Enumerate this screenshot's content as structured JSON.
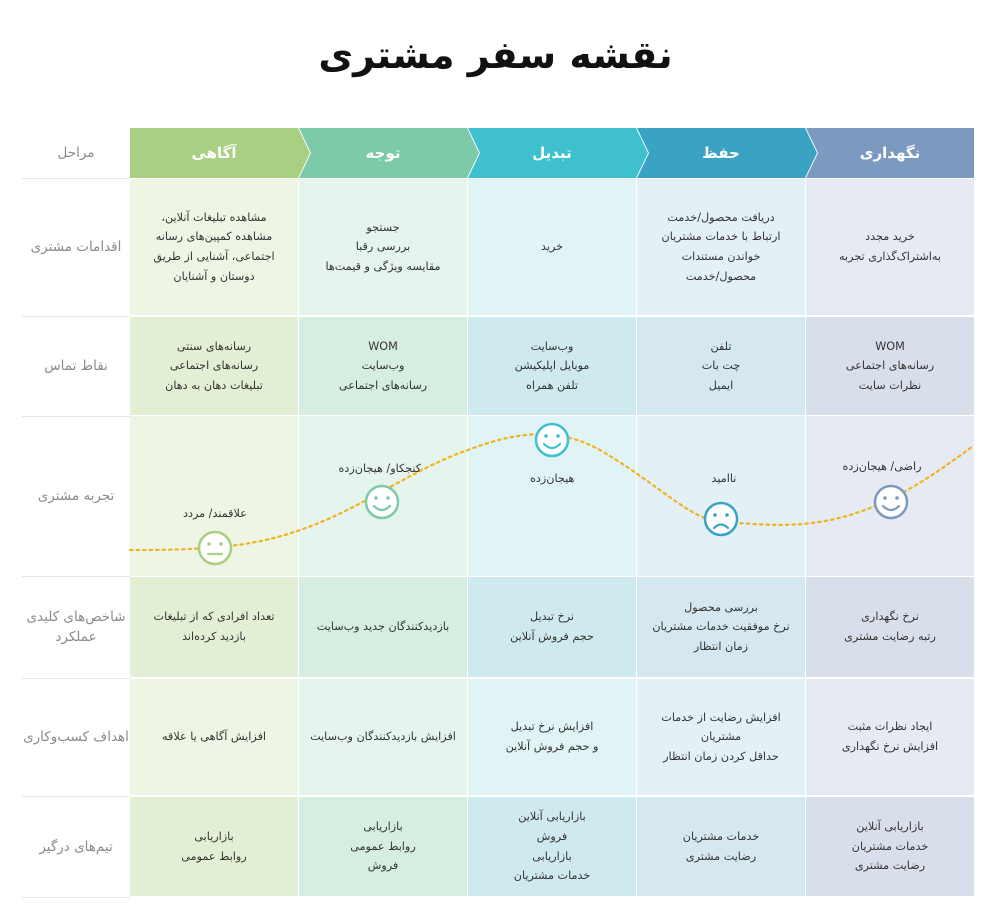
{
  "title": "نقشه سفر مشتری",
  "stages_label": "مراحل",
  "rows": [
    {
      "label": "اقدامات مشتری"
    },
    {
      "label": "نقاط تماس"
    },
    {
      "label": "تجربه مشتری"
    },
    {
      "label": "شاخص‌های کلیدی عملکرد"
    },
    {
      "label": "اهداف کسب‌وکاری"
    },
    {
      "label": "تیم‌های درگیر"
    }
  ],
  "phases": [
    {
      "name": "آگاهی",
      "color": "#a9cf83",
      "tint": "#eef5e4",
      "tint2": "#e3efd5",
      "actions": "مشاهده تبلیغات آنلاین،\nمشاهده کمپین‌های رسانه\nاجتماعی، آشنایی از طریق\nدوستان و آشنایان",
      "touchpoints": "رسانه‌های سنتی\nرسانه‌های اجتماعی\nتبلیغات دهان به دهان",
      "experience": "علاقمند/ مردد",
      "face": "neutral",
      "kpi": "تعداد افرادی که از تبلیغات\nبازدید کرده‌اند",
      "goals": "افزایش آگاهی یا علاقه",
      "teams": "بازاریابی\nروابط عمومی"
    },
    {
      "name": "توجه",
      "color": "#7ccaa8",
      "tint": "#e5f4ec",
      "tint2": "#d6eee2",
      "actions": "جستجو\nبررسی رقبا\nمقایسه ویژگی و قیمت‌ها",
      "touchpoints": "WOM\nوب‌سایت\nرسانه‌های اجتماعی",
      "experience": "کنجکاو/ هیجان‌زده",
      "face": "happy",
      "kpi": "بازدیدکنندگان جدید وب‌سایت",
      "goals": "افزایش بازدیدکنندگان وب‌سایت",
      "teams": "بازاریابی\nروابط عمومی\nفروش"
    },
    {
      "name": "تبدیل",
      "color": "#3fc0cf",
      "tint": "#e0f3f5",
      "tint2": "#cfeaee",
      "actions": "خرید",
      "touchpoints": "وب‌سایت\nموبایل اپلیکیشن\nتلفن همراه",
      "experience": "هیجان‌زده",
      "face": "happy",
      "kpi": "نرخ تبدیل\nحجم فروش آنلاین",
      "goals": "افزایش نرخ تبدیل\nو حجم فروش آنلاین",
      "teams": "بازاریابی آنلاین\nفروش\nبازاریابی\nخدمات مشتریان"
    },
    {
      "name": "حفظ",
      "color": "#3aa3c4",
      "tint": "#e3f0f6",
      "tint2": "#d5e8f0",
      "actions": "دریافت محصول/خدمت\nارتباط با خدمات مشتریان\nخواندن مستندات\nمحصول/خدمت",
      "touchpoints": "تلفن\nچت بات\nایمیل",
      "experience": "ناامید",
      "face": "sad",
      "kpi": "بررسی محصول\nنرخ موفقیت خدمات مشتریان\nزمان انتظار",
      "goals": "افزایش رضایت از خدمات\nمشتریان\nحداقل کردن زمان انتظار",
      "teams": "خدمات مشتریان\nرضایت مشتری"
    },
    {
      "name": "نگهداری",
      "color": "#7c9ac0",
      "tint": "#e6eaf2",
      "tint2": "#d9dfea",
      "actions": "خرید مجدد\nبه‌اشتراک‌گذاری تجربه",
      "touchpoints": "WOM\nرسانه‌های اجتماعی\nنظرات سایت",
      "experience": "راضی/ هیجان‌زده",
      "face": "happy",
      "kpi": "نرخ نگهداری\nرتبه رضایت مشتری",
      "goals": "ایجاد نظرات مثبت\nافزایش نرخ نگهداری",
      "teams": "بازاریابی آنلاین\nخدمات مشتریان\nرضایت مشتری"
    }
  ],
  "curve_color": "#f0b323"
}
